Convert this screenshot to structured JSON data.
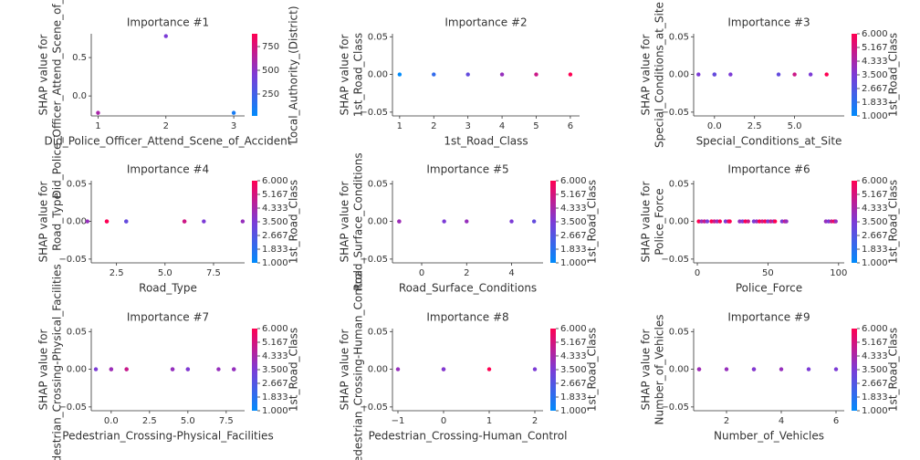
{
  "chart_data": [
    {
      "type": "scatter",
      "title": "Importance #1",
      "xlabel": "Did_Police_Officer_Attend_Scene_of_Accident",
      "ylabel": [
        "SHAP value for",
        "Did_Police_Officer_Attend_Scene_of_Accident"
      ],
      "x": [
        1,
        2,
        3
      ],
      "values": [
        -0.22,
        0.78,
        -0.22
      ],
      "c": [
        600,
        450,
        100
      ],
      "xlim": [
        0.9,
        3.16
      ],
      "ylim": [
        -0.26,
        0.81
      ],
      "xticks": [
        1,
        2,
        3
      ],
      "yticks": [
        {
          "value": 0,
          "label": "0.0"
        },
        0.5
      ],
      "colorbar_label": "Local_Authority_(District)",
      "clim": [
        19,
        885
      ],
      "cticks": [
        250,
        500,
        750
      ],
      "colormap": [
        "#008bfb",
        "#7c3bd6",
        "#ff0052"
      ]
    },
    {
      "type": "scatter",
      "title": "Importance #2",
      "xlabel": "1st_Road_Class",
      "ylabel": [
        "SHAP value for",
        "1st_Road_Class"
      ],
      "x": [
        1,
        2,
        3,
        4,
        5,
        6
      ],
      "values": [
        0,
        0,
        0,
        0,
        0,
        0
      ],
      "c": [
        1,
        2,
        3,
        4,
        5,
        6
      ],
      "xlim": [
        0.79,
        6.27
      ],
      "ylim": [
        -0.055,
        0.054
      ],
      "xticks": [
        1,
        2,
        3,
        4,
        5,
        6
      ],
      "yticks": [
        {
          "value": -0.05,
          "label": "−0.05"
        },
        {
          "value": 0,
          "label": "0.00"
        },
        0.05
      ],
      "clim": [
        1,
        6
      ],
      "colormap": [
        "#008bfb",
        "#7c3bd6",
        "#ff0052"
      ]
    },
    {
      "type": "scatter",
      "title": "Importance #3",
      "xlabel": "Special_Conditions_at_Site",
      "ylabel": [
        "SHAP value for",
        "Special_Conditions_at_Site"
      ],
      "x": [
        -1,
        0,
        0,
        1,
        4,
        5,
        6,
        7
      ],
      "values": [
        0,
        0,
        0,
        0,
        0,
        0,
        0,
        0
      ],
      "c": [
        3.5,
        3.5,
        3,
        3.5,
        3,
        5,
        3.5,
        6
      ],
      "xlim": [
        -1.3,
        8.1
      ],
      "ylim": [
        -0.055,
        0.054
      ],
      "xticks": [
        {
          "value": 0,
          "label": "0.0"
        },
        2.5,
        {
          "value": 5,
          "label": "5.0"
        }
      ],
      "yticks": [
        {
          "value": -0.05,
          "label": "−0.05"
        },
        {
          "value": 0,
          "label": "0.00"
        },
        0.05
      ],
      "colorbar_label": "1st_Road_Class",
      "clim": [
        1,
        6
      ],
      "cticks": [
        {
          "value": 1,
          "label": "1.000"
        },
        {
          "value": 1.833,
          "label": "1.833"
        },
        {
          "value": 2.667,
          "label": "2.667"
        },
        {
          "value": 3.5,
          "label": "3.500"
        },
        {
          "value": 4.333,
          "label": "4.333"
        },
        {
          "value": 5.167,
          "label": "5.167"
        },
        {
          "value": 6,
          "label": "6.000"
        }
      ],
      "colormap": [
        "#008bfb",
        "#7c3bd6",
        "#ff0052"
      ]
    },
    {
      "type": "scatter",
      "title": "Importance #4",
      "xlabel": "Road_Type",
      "ylabel": [
        "SHAP value for",
        "Road_Type"
      ],
      "x": [
        1,
        2,
        2,
        3,
        3,
        6,
        6,
        7,
        9
      ],
      "values": [
        0,
        0,
        0,
        0,
        0,
        0,
        0,
        0,
        0
      ],
      "c": [
        4,
        5,
        6,
        3.5,
        3,
        6,
        5,
        3.5,
        4
      ],
      "xlim": [
        1.2,
        9.1
      ],
      "ylim": [
        -0.055,
        0.054
      ],
      "xticks": [
        2.5,
        {
          "value": 5,
          "label": "5.0"
        },
        7.5
      ],
      "yticks": [
        {
          "value": -0.05,
          "label": "−0.05"
        },
        {
          "value": 0,
          "label": "0.00"
        },
        0.05
      ],
      "colorbar_label": "1st_Road_Class",
      "clim": [
        1,
        6
      ],
      "cticks": [
        {
          "value": 1,
          "label": "1.000"
        },
        {
          "value": 1.833,
          "label": "1.833"
        },
        {
          "value": 2.667,
          "label": "2.667"
        },
        {
          "value": 3.5,
          "label": "3.500"
        },
        {
          "value": 4.333,
          "label": "4.333"
        },
        {
          "value": 5.167,
          "label": "5.167"
        },
        {
          "value": 6,
          "label": "6.000"
        }
      ],
      "colormap": [
        "#008bfb",
        "#7c3bd6",
        "#ff0052"
      ]
    },
    {
      "type": "scatter",
      "title": "Importance #5",
      "xlabel": "Road_Surface_Conditions",
      "ylabel": [
        "SHAP value for",
        "Road_Surface_Conditions"
      ],
      "x": [
        -1,
        -1,
        1,
        2,
        4,
        5
      ],
      "values": [
        0,
        0,
        0,
        0,
        0,
        0
      ],
      "c": [
        6,
        4,
        3.5,
        4,
        3.5,
        3
      ],
      "xlim": [
        -1.3,
        5.4
      ],
      "ylim": [
        -0.055,
        0.054
      ],
      "xticks": [
        0,
        2,
        4
      ],
      "yticks": [
        {
          "value": -0.05,
          "label": "−0.05"
        },
        {
          "value": 0,
          "label": "0.00"
        },
        0.05
      ],
      "colorbar_label": "1st_Road_Class",
      "clim": [
        1,
        6
      ],
      "cticks": [
        {
          "value": 1,
          "label": "1.000"
        },
        {
          "value": 1.833,
          "label": "1.833"
        },
        {
          "value": 2.667,
          "label": "2.667"
        },
        {
          "value": 3.5,
          "label": "3.500"
        },
        {
          "value": 4.333,
          "label": "4.333"
        },
        {
          "value": 5.167,
          "label": "5.167"
        },
        {
          "value": 6,
          "label": "6.000"
        }
      ],
      "colormap": [
        "#008bfb",
        "#7c3bd6",
        "#ff0052"
      ]
    },
    {
      "type": "scatter",
      "title": "Importance #6",
      "xlabel": "Police_Force",
      "ylabel": [
        "SHAP value for",
        "Police_Force"
      ],
      "x": [
        1,
        3,
        5,
        7,
        10,
        12,
        14,
        16,
        20,
        22,
        23,
        30,
        32,
        34,
        36,
        40,
        42,
        44,
        46,
        48,
        50,
        52,
        54,
        55,
        60,
        62,
        63,
        91,
        93,
        95,
        97,
        98
      ],
      "values": [
        0,
        0,
        0,
        0,
        0,
        0,
        0,
        0,
        0,
        0,
        0,
        0,
        0,
        0,
        0,
        0,
        0,
        0,
        0,
        0,
        0,
        0,
        0,
        0,
        0,
        0,
        0,
        0,
        0,
        0,
        0,
        0
      ],
      "c": [
        6,
        4,
        5,
        3.5,
        6,
        5,
        4,
        6,
        3.5,
        5,
        6,
        4,
        3.5,
        6,
        5,
        3.5,
        4,
        6,
        5,
        6,
        3.5,
        5,
        4,
        6,
        3.5,
        5,
        4,
        4,
        3.5,
        5,
        6,
        4
      ],
      "xlim": [
        -2.6,
        104
      ],
      "ylim": [
        -0.055,
        0.054
      ],
      "xticks": [
        0,
        50,
        100
      ],
      "yticks": [
        {
          "value": -0.05,
          "label": "−0.05"
        },
        {
          "value": 0,
          "label": "0.00"
        },
        0.05
      ],
      "colorbar_label": "1st_Road_Class",
      "clim": [
        1,
        6
      ],
      "cticks": [
        {
          "value": 1,
          "label": "1.000"
        },
        {
          "value": 1.833,
          "label": "1.833"
        },
        {
          "value": 2.667,
          "label": "2.667"
        },
        {
          "value": 3.5,
          "label": "3.500"
        },
        {
          "value": 4.333,
          "label": "4.333"
        },
        {
          "value": 5.167,
          "label": "5.167"
        },
        {
          "value": 6,
          "label": "6.000"
        }
      ],
      "colormap": [
        "#008bfb",
        "#7c3bd6",
        "#ff0052"
      ]
    },
    {
      "type": "scatter",
      "title": "Importance #7",
      "xlabel": "Pedestrian_Crossing-Physical_Facilities",
      "ylabel": [
        "SHAP value for",
        "Pedestrian_Crossing-Physical_Facilities"
      ],
      "x": [
        -1,
        0,
        0,
        1,
        1,
        4,
        4,
        5,
        5,
        7,
        8,
        8
      ],
      "values": [
        0,
        0,
        0,
        0,
        0,
        0,
        0,
        0,
        0,
        0,
        0,
        0
      ],
      "c": [
        3.5,
        6,
        4,
        3.5,
        5,
        3.5,
        4,
        5,
        3.5,
        4,
        3.5,
        4
      ],
      "xlim": [
        -1.3,
        8.7
      ],
      "ylim": [
        -0.055,
        0.054
      ],
      "xticks": [
        {
          "value": 0,
          "label": "0.0"
        },
        2.5,
        {
          "value": 5,
          "label": "5.0"
        },
        7.5
      ],
      "yticks": [
        {
          "value": -0.05,
          "label": "−0.05"
        },
        {
          "value": 0,
          "label": "0.00"
        },
        0.05
      ],
      "colorbar_label": "1st_Road_Class",
      "clim": [
        1,
        6
      ],
      "cticks": [
        {
          "value": 1,
          "label": "1.000"
        },
        {
          "value": 1.833,
          "label": "1.833"
        },
        {
          "value": 2.667,
          "label": "2.667"
        },
        {
          "value": 3.5,
          "label": "3.500"
        },
        {
          "value": 4.333,
          "label": "4.333"
        },
        {
          "value": 5.167,
          "label": "5.167"
        },
        {
          "value": 6,
          "label": "6.000"
        }
      ],
      "colormap": [
        "#008bfb",
        "#7c3bd6",
        "#ff0052"
      ]
    },
    {
      "type": "scatter",
      "title": "Importance #8",
      "xlabel": "Pedestrian_Crossing-Human_Control",
      "ylabel": [
        "SHAP value for",
        "Pedestrian_Crossing-Human_Control"
      ],
      "x": [
        -1,
        0,
        0,
        1,
        2
      ],
      "values": [
        0,
        0,
        0,
        0,
        0
      ],
      "c": [
        4,
        6,
        3.5,
        6,
        3.5
      ],
      "xlim": [
        -1.12,
        2.18
      ],
      "ylim": [
        -0.055,
        0.054
      ],
      "xticks": [
        {
          "value": -1,
          "label": "−1"
        },
        0,
        1,
        2
      ],
      "yticks": [
        {
          "value": -0.05,
          "label": "−0.05"
        },
        {
          "value": 0,
          "label": "0.00"
        },
        0.05
      ],
      "colorbar_label": "1st_Road_Class",
      "clim": [
        1,
        6
      ],
      "cticks": [
        {
          "value": 1,
          "label": "1.000"
        },
        {
          "value": 1.833,
          "label": "1.833"
        },
        {
          "value": 2.667,
          "label": "2.667"
        },
        {
          "value": 3.5,
          "label": "3.500"
        },
        {
          "value": 4.333,
          "label": "4.333"
        },
        {
          "value": 5.167,
          "label": "5.167"
        },
        {
          "value": 6,
          "label": "6.000"
        }
      ],
      "colormap": [
        "#008bfb",
        "#7c3bd6",
        "#ff0052"
      ]
    },
    {
      "type": "scatter",
      "title": "Importance #9",
      "xlabel": "Number_of_Vehicles",
      "ylabel": [
        "SHAP value for",
        "Number_of_Vehicles"
      ],
      "x": [
        1,
        1,
        2,
        3,
        3,
        4,
        5,
        6
      ],
      "values": [
        0,
        0,
        0,
        0,
        0,
        0,
        0,
        0
      ],
      "c": [
        6,
        4,
        4,
        6,
        3.5,
        4,
        3.5,
        3.5
      ],
      "xlim": [
        0.8,
        6.3
      ],
      "ylim": [
        -0.055,
        0.054
      ],
      "xticks": [
        2,
        4,
        6
      ],
      "yticks": [
        {
          "value": -0.05,
          "label": "−0.05"
        },
        {
          "value": 0,
          "label": "0.00"
        },
        0.05
      ],
      "colorbar_label": "1st_Road_Class",
      "clim": [
        1,
        6
      ],
      "cticks": [
        {
          "value": 1,
          "label": "1.000"
        },
        {
          "value": 1.833,
          "label": "1.833"
        },
        {
          "value": 2.667,
          "label": "2.667"
        },
        {
          "value": 3.5,
          "label": "3.500"
        },
        {
          "value": 4.333,
          "label": "4.333"
        },
        {
          "value": 5.167,
          "label": "5.167"
        },
        {
          "value": 6,
          "label": "6.000"
        }
      ],
      "colormap": [
        "#008bfb",
        "#7c3bd6",
        "#ff0052"
      ]
    }
  ]
}
